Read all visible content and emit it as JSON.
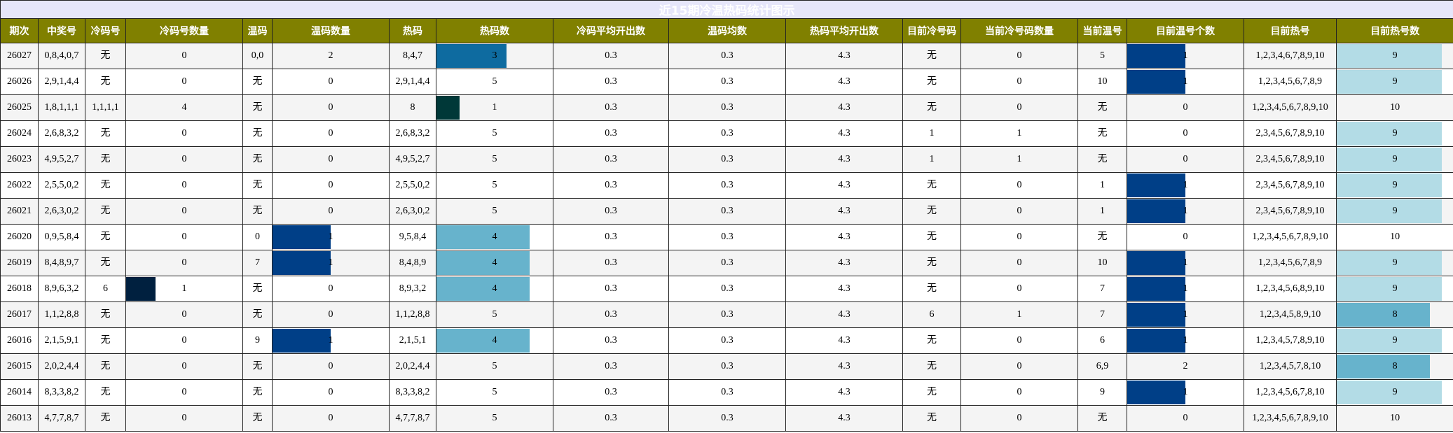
{
  "header": {
    "title": "近15期冷温热码统计图示"
  },
  "table": {
    "columns": [
      "期次",
      "中奖号",
      "冷码号",
      "冷码号数量",
      "温码",
      "温码数量",
      "热码",
      "热码数",
      "冷码平均开出数",
      "温码均数",
      "热码平均开出数",
      "目前冷号码",
      "当前冷号码数量",
      "当前温号",
      "目前温号个数",
      "目前热号",
      "目前热号数"
    ],
    "rows": [
      [
        "26027",
        "0,8,4,0,7",
        "无",
        "0",
        "0,0",
        "2",
        "8,4,7",
        {
          "text": "3",
          "fill": "#0e6ba0"
        },
        "0.3",
        "0.3",
        "4.3",
        "无",
        "0",
        "5",
        {
          "text": "1",
          "fill": "#003f87"
        },
        "1,2,3,4,6,7,8,9,10",
        {
          "text": "9",
          "fill": "#b3dce6"
        }
      ],
      [
        "26026",
        "2,9,1,4,4",
        "无",
        "0",
        "无",
        "0",
        "2,9,1,4,4",
        "5",
        "0.3",
        "0.3",
        "4.3",
        "无",
        "0",
        "10",
        {
          "text": "1",
          "fill": "#003f87"
        },
        "1,2,3,4,5,6,7,8,9",
        {
          "text": "9",
          "fill": "#b3dce6"
        }
      ],
      [
        "26025",
        "1,8,1,1,1",
        "1,1,1,1",
        "4",
        "无",
        "0",
        "8",
        {
          "text": "1",
          "fill": "#003838"
        },
        "0.3",
        "0.3",
        "4.3",
        "无",
        "0",
        "无",
        "0",
        "1,2,3,4,5,6,7,8,9,10",
        "10"
      ],
      [
        "26024",
        "2,6,8,3,2",
        "无",
        "0",
        "无",
        "0",
        "2,6,8,3,2",
        "5",
        "0.3",
        "0.3",
        "4.3",
        "1",
        "1",
        "无",
        "0",
        "2,3,4,5,6,7,8,9,10",
        {
          "text": "9",
          "fill": "#b3dce6"
        }
      ],
      [
        "26023",
        "4,9,5,2,7",
        "无",
        "0",
        "无",
        "0",
        "4,9,5,2,7",
        "5",
        "0.3",
        "0.3",
        "4.3",
        "1",
        "1",
        "无",
        "0",
        "2,3,4,5,6,7,8,9,10",
        {
          "text": "9",
          "fill": "#b3dce6"
        }
      ],
      [
        "26022",
        "2,5,5,0,2",
        "无",
        "0",
        "无",
        "0",
        "2,5,5,0,2",
        "5",
        "0.3",
        "0.3",
        "4.3",
        "无",
        "0",
        "1",
        {
          "text": "1",
          "fill": "#003f87"
        },
        "2,3,4,5,6,7,8,9,10",
        {
          "text": "9",
          "fill": "#b3dce6"
        }
      ],
      [
        "26021",
        "2,6,3,0,2",
        "无",
        "0",
        "无",
        "0",
        "2,6,3,0,2",
        "5",
        "0.3",
        "0.3",
        "4.3",
        "无",
        "0",
        "1",
        {
          "text": "1",
          "fill": "#003f87"
        },
        "2,3,4,5,6,7,8,9,10",
        {
          "text": "9",
          "fill": "#b3dce6"
        }
      ],
      [
        "26020",
        "0,9,5,8,4",
        "无",
        "0",
        "0",
        {
          "text": "1",
          "fill": "#003f87"
        },
        "9,5,8,4",
        {
          "text": "4",
          "fill": "#67b3cc"
        },
        "0.3",
        "0.3",
        "4.3",
        "无",
        "0",
        "无",
        "0",
        "1,2,3,4,5,6,7,8,9,10",
        "10"
      ],
      [
        "26019",
        "8,4,8,9,7",
        "无",
        "0",
        "7",
        {
          "text": "1",
          "fill": "#003f87"
        },
        "8,4,8,9",
        {
          "text": "4",
          "fill": "#67b3cc"
        },
        "0.3",
        "0.3",
        "4.3",
        "无",
        "0",
        "10",
        {
          "text": "1",
          "fill": "#003f87"
        },
        "1,2,3,4,5,6,7,8,9",
        {
          "text": "9",
          "fill": "#b3dce6"
        }
      ],
      [
        "26018",
        "8,9,6,3,2",
        "6",
        {
          "text": "1",
          "fill": "#00203f"
        },
        "无",
        "0",
        "8,9,3,2",
        {
          "text": "4",
          "fill": "#67b3cc"
        },
        "0.3",
        "0.3",
        "4.3",
        "无",
        "0",
        "7",
        {
          "text": "1",
          "fill": "#003f87"
        },
        "1,2,3,4,5,6,8,9,10",
        {
          "text": "9",
          "fill": "#b3dce6"
        }
      ],
      [
        "26017",
        "1,1,2,8,8",
        "无",
        "0",
        "无",
        "0",
        "1,1,2,8,8",
        "5",
        "0.3",
        "0.3",
        "4.3",
        "6",
        "1",
        "7",
        {
          "text": "1",
          "fill": "#003f87"
        },
        "1,2,3,4,5,8,9,10",
        {
          "text": "8",
          "fill": "#67b3cc"
        }
      ],
      [
        "26016",
        "2,1,5,9,1",
        "无",
        "0",
        "9",
        {
          "text": "1",
          "fill": "#003f87"
        },
        "2,1,5,1",
        {
          "text": "4",
          "fill": "#67b3cc"
        },
        "0.3",
        "0.3",
        "4.3",
        "无",
        "0",
        "6",
        {
          "text": "1",
          "fill": "#003f87"
        },
        "1,2,3,4,5,7,8,9,10",
        {
          "text": "9",
          "fill": "#b3dce6"
        }
      ],
      [
        "26015",
        "2,0,2,4,4",
        "无",
        "0",
        "无",
        "0",
        "2,0,2,4,4",
        "5",
        "0.3",
        "0.3",
        "4.3",
        "无",
        "0",
        "6,9",
        "2",
        "1,2,3,4,5,7,8,10",
        {
          "text": "8",
          "fill": "#67b3cc"
        }
      ],
      [
        "26014",
        "8,3,3,8,2",
        "无",
        "0",
        "无",
        "0",
        "8,3,3,8,2",
        "5",
        "0.3",
        "0.3",
        "4.3",
        "无",
        "0",
        "9",
        {
          "text": "1",
          "fill": "#003f87"
        },
        "1,2,3,4,5,6,7,8,10",
        {
          "text": "9",
          "fill": "#b3dce6"
        }
      ],
      [
        "26013",
        "4,7,7,8,7",
        "无",
        "0",
        "无",
        "0",
        "4,7,7,8,7",
        "5",
        "0.3",
        "0.3",
        "4.3",
        "无",
        "0",
        "无",
        "0",
        "1,2,3,4,5,6,7,8,9,10",
        "10"
      ]
    ]
  }
}
